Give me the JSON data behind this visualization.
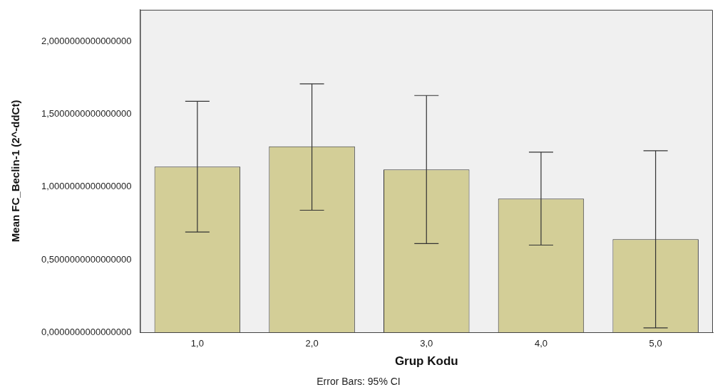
{
  "chart_data": {
    "type": "bar",
    "xlabel": "Grup Kodu",
    "ylabel": "Mean FC_Beclin-1 (2^-ddCt)",
    "categories": [
      "1,0",
      "2,0",
      "3,0",
      "4,0",
      "5,0"
    ],
    "values": [
      1.14,
      1.28,
      1.12,
      0.92,
      0.64
    ],
    "errors": [
      [
        0.69,
        1.59
      ],
      [
        0.84,
        1.71
      ],
      [
        0.61,
        1.63
      ],
      [
        0.6,
        1.24
      ],
      [
        0.03,
        1.25
      ]
    ],
    "color": "#d3ce97",
    "ylim": [
      0,
      2.22
    ],
    "yticks": [
      {
        "value": 0,
        "label": "0,0000000000000000"
      },
      {
        "value": 0.5,
        "label": "0,5000000000000000"
      },
      {
        "value": 1,
        "label": "1,0000000000000000"
      },
      {
        "value": 1.5,
        "label": "1,5000000000000000"
      },
      {
        "value": 2,
        "label": "2,0000000000000000"
      }
    ],
    "grid": false,
    "legend": false,
    "annotations": [
      "Error Bars: 95% CI"
    ]
  }
}
